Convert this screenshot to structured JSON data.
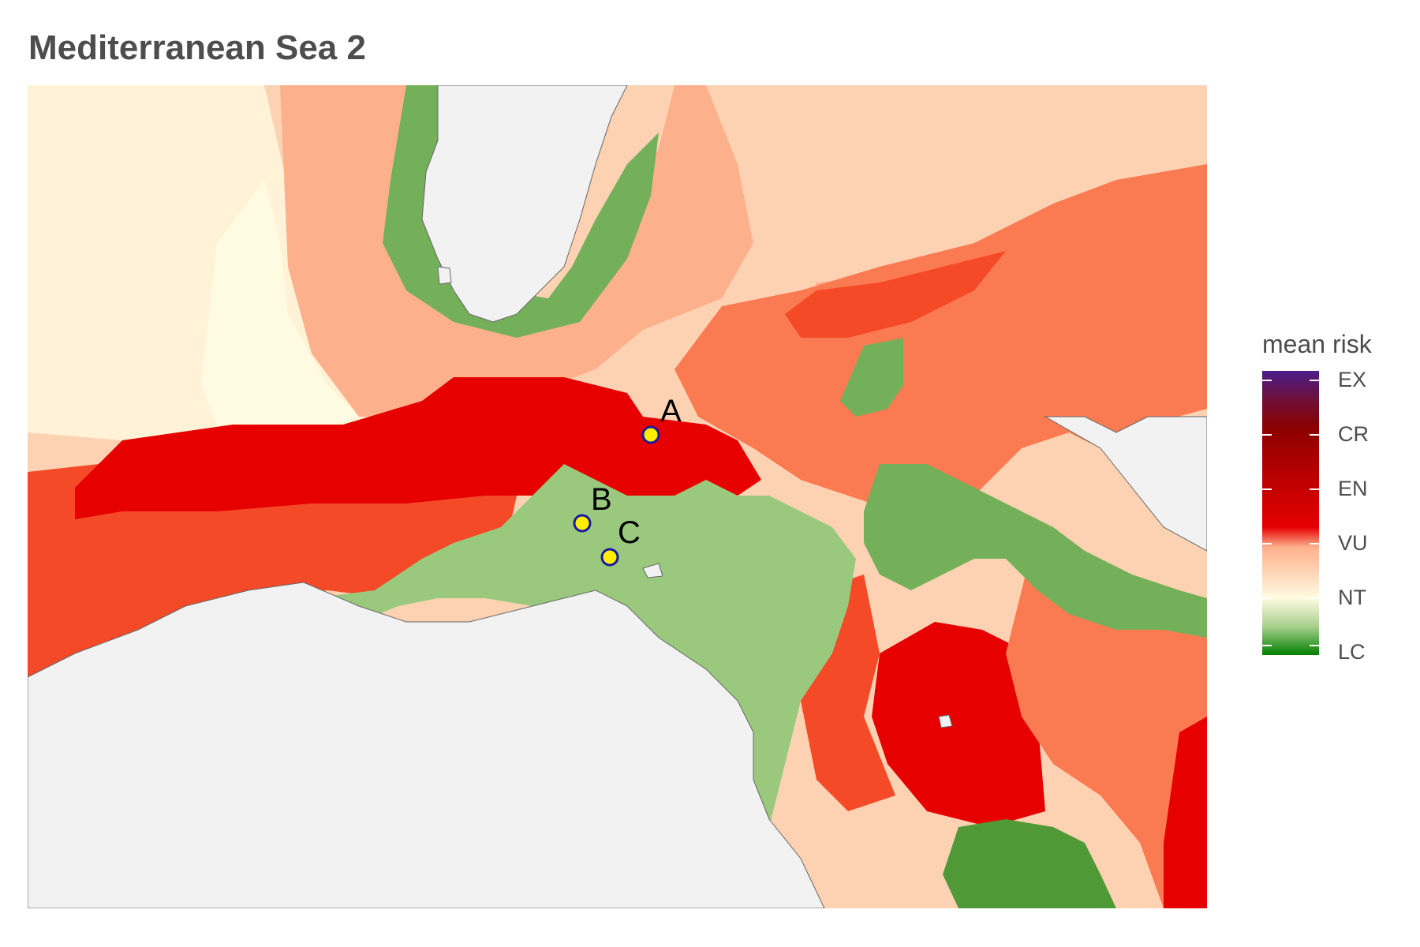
{
  "title": "Mediterranean Sea 2",
  "legend": {
    "title": "mean risk",
    "labels": [
      "EX",
      "CR",
      "EN",
      "VU",
      "NT",
      "LC"
    ],
    "gradient_stops": [
      "#4a1d8a",
      "#6e0f3a",
      "#8b0000",
      "#b30000",
      "#e00000",
      "#f25a2a",
      "#ffe4c4",
      "#fffbe0",
      "#a8d08d",
      "#008000"
    ]
  },
  "colors": {
    "land": "#f2f2f2",
    "coast": "#666666",
    "green_dark": "#4f9a37",
    "green_mid": "#74b05a",
    "green_light": "#9ac97e",
    "red": "#e60000",
    "red_orange": "#f44a28",
    "orange": "#fa7a52",
    "salmon": "#fdb08c",
    "peach": "#fdd2b3",
    "cream": "#fff2d6",
    "ivory": "#fffbe2",
    "site_fill": "#ffee00",
    "site_stroke": "#1a1aa0"
  },
  "sites": [
    {
      "label": "A"
    },
    {
      "label": "B"
    },
    {
      "label": "C"
    }
  ]
}
